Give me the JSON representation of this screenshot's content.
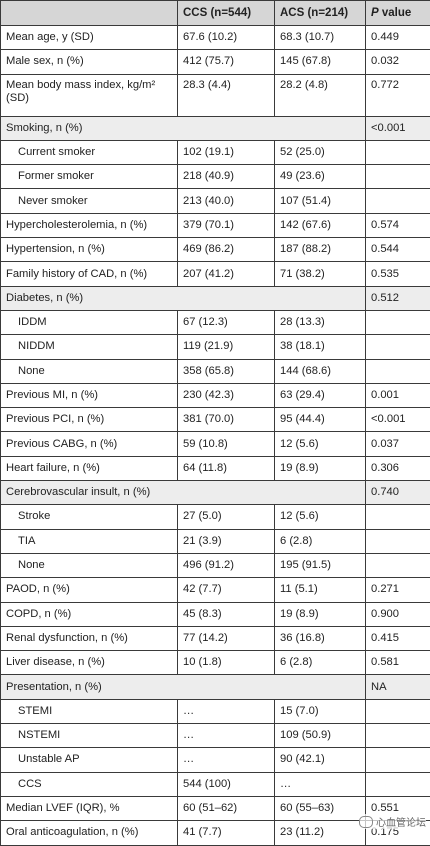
{
  "header": {
    "col1": "",
    "col2": "CCS (n=544)",
    "col3": "ACS (n=214)",
    "col4_p": "P",
    "col4_rest": " value"
  },
  "rows": [
    {
      "label": "Mean age, y (SD)",
      "ccs": "67.6 (10.2)",
      "acs": "68.3 (10.7)",
      "p": "0.449"
    },
    {
      "label": "Male sex, n (%)",
      "ccs": "412 (75.7)",
      "acs": "145 (67.8)",
      "p": "0.032"
    },
    {
      "label": "Mean body mass index, kg/m² (SD)",
      "ccs": "28.3 (4.4)",
      "acs": "28.2 (4.8)",
      "p": "0.772"
    },
    {
      "label": "Smoking, n (%)",
      "p": "<0.001"
    },
    {
      "label": "Current smoker",
      "ccs": "102 (19.1)",
      "acs": "52 (25.0)",
      "p": ""
    },
    {
      "label": "Former smoker",
      "ccs": "218 (40.9)",
      "acs": "49 (23.6)",
      "p": ""
    },
    {
      "label": "Never smoker",
      "ccs": "213 (40.0)",
      "acs": "107 (51.4)",
      "p": ""
    },
    {
      "label": "Hypercholesterolemia, n (%)",
      "ccs": "379 (70.1)",
      "acs": "142 (67.6)",
      "p": "0.574"
    },
    {
      "label": "Hypertension, n (%)",
      "ccs": "469 (86.2)",
      "acs": "187 (88.2)",
      "p": "0.544"
    },
    {
      "label": "Family history of CAD, n (%)",
      "ccs": "207 (41.2)",
      "acs": "71 (38.2)",
      "p": "0.535"
    },
    {
      "label": "Diabetes, n (%)",
      "p": "0.512"
    },
    {
      "label": "IDDM",
      "ccs": "67 (12.3)",
      "acs": "28 (13.3)",
      "p": ""
    },
    {
      "label": "NIDDM",
      "ccs": "119 (21.9)",
      "acs": "38 (18.1)",
      "p": ""
    },
    {
      "label": "None",
      "ccs": "358 (65.8)",
      "acs": "144 (68.6)",
      "p": ""
    },
    {
      "label": "Previous MI, n (%)",
      "ccs": "230 (42.3)",
      "acs": "63 (29.4)",
      "p": "0.001"
    },
    {
      "label": "Previous PCI, n (%)",
      "ccs": "381 (70.0)",
      "acs": "95 (44.4)",
      "p": "<0.001"
    },
    {
      "label": "Previous CABG, n (%)",
      "ccs": "59 (10.8)",
      "acs": "12 (5.6)",
      "p": "0.037"
    },
    {
      "label": "Heart failure, n (%)",
      "ccs": "64 (11.8)",
      "acs": "19 (8.9)",
      "p": "0.306"
    },
    {
      "label": "Cerebrovascular insult, n (%)",
      "p": "0.740"
    },
    {
      "label": "Stroke",
      "ccs": "27 (5.0)",
      "acs": "12 (5.6)",
      "p": ""
    },
    {
      "label": "TIA",
      "ccs": "21 (3.9)",
      "acs": "6 (2.8)",
      "p": ""
    },
    {
      "label": "None",
      "ccs": "496 (91.2)",
      "acs": "195 (91.5)",
      "p": ""
    },
    {
      "label": "PAOD, n (%)",
      "ccs": "42 (7.7)",
      "acs": "11 (5.1)",
      "p": "0.271"
    },
    {
      "label": "COPD, n (%)",
      "ccs": "45 (8.3)",
      "acs": "19 (8.9)",
      "p": "0.900"
    },
    {
      "label": "Renal dysfunction, n (%)",
      "ccs": "77 (14.2)",
      "acs": "36 (16.8)",
      "p": "0.415"
    },
    {
      "label": "Liver disease, n (%)",
      "ccs": "10 (1.8)",
      "acs": "6 (2.8)",
      "p": "0.581"
    },
    {
      "label": "Presentation, n (%)",
      "p": "NA"
    },
    {
      "label": "STEMI",
      "ccs": "…",
      "acs": "15 (7.0)",
      "p": ""
    },
    {
      "label": "NSTEMI",
      "ccs": "…",
      "acs": "109 (50.9)",
      "p": ""
    },
    {
      "label": "Unstable AP",
      "ccs": "…",
      "acs": "90 (42.1)",
      "p": ""
    },
    {
      "label": "CCS",
      "ccs": "544 (100)",
      "acs": "…",
      "p": ""
    },
    {
      "label": "Median LVEF (IQR), %",
      "ccs": "60 (51–62)",
      "acs": "60 (55–63)",
      "p": "0.551"
    },
    {
      "label": "Oral anticoagulation, n (%)",
      "ccs": "41 (7.7)",
      "acs": "23 (11.2)",
      "p": "0.175"
    }
  ],
  "watermark": "心血管论坛"
}
